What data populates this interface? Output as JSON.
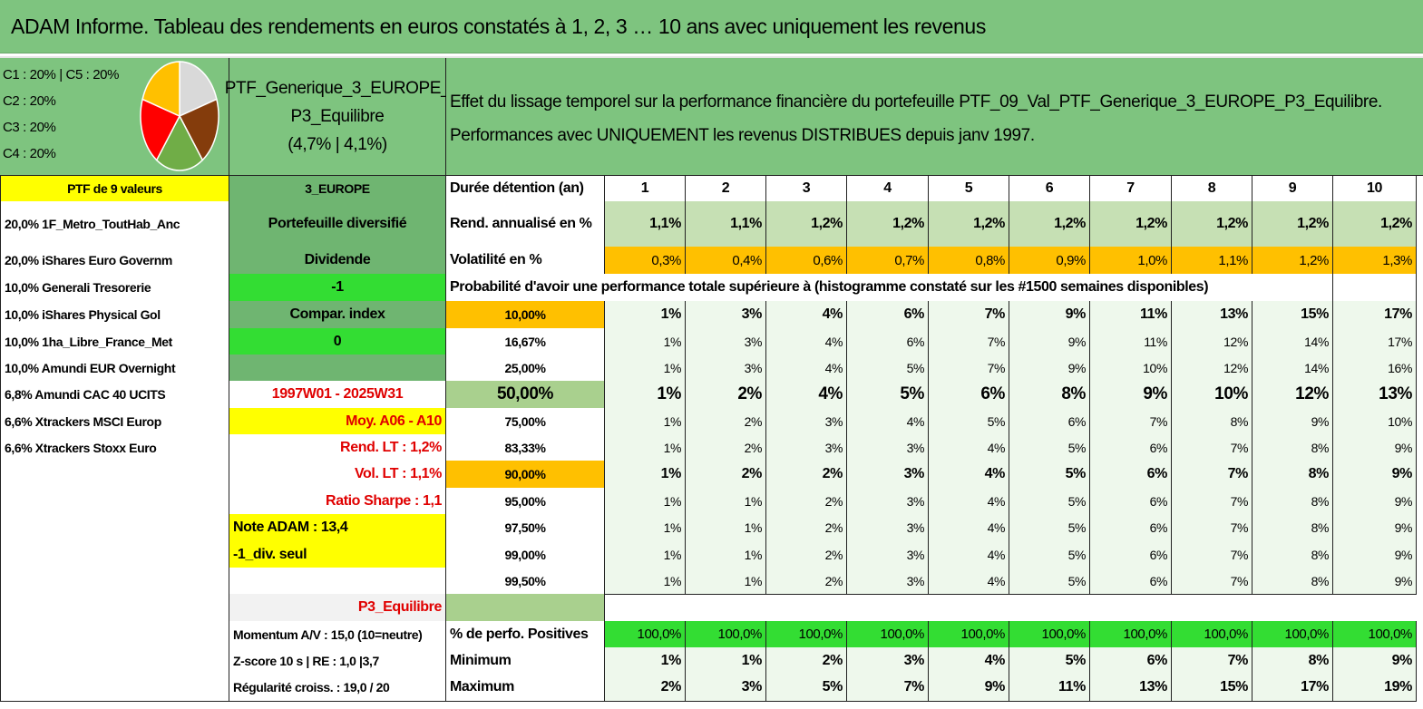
{
  "title": "ADAM Informe. Tableau des rendements en euros constatés à 1, 2, 3 … 10 ans avec uniquement les revenus",
  "allocation": {
    "labels": [
      "C1 : 20% | C5 : 20%",
      "C2 : 20%",
      "C3 : 20%",
      "C4 : 20%"
    ],
    "pie": {
      "values": [
        20,
        20,
        20,
        20,
        20
      ],
      "colors": [
        "#d9d9d9",
        "#843c0c",
        "#70ad47",
        "#ff0000",
        "#ffc000"
      ]
    }
  },
  "portfolio": {
    "name_lines": [
      "PTF_Generique_3_EUROPE_",
      "P3_Equilibre"
    ],
    "stats": "(4,7% | 4,1%)"
  },
  "description": [
    "Effet du lissage temporel sur la performance financière du portefeuille PTF_09_Val_PTF_Generique_3_EUROPE_P3_Equilibre.",
    "Performances avec UNIQUEMENT les revenus DISTRIBUES depuis janv 1997."
  ],
  "table": {
    "rows": [
      [
        "PTF de 9 valeurs",
        "3_EUROPE",
        "Durée détention (an)",
        1,
        2,
        3,
        4,
        5,
        6,
        7,
        8,
        9,
        10
      ],
      [
        "20,0% 1F_Metro_ToutHab_Anc",
        "Portefeuille diversifié",
        "Rend. annualisé en %",
        "1,1%",
        "1,1%",
        "1,2%",
        "1,2%",
        "1,2%",
        "1,2%",
        "1,2%",
        "1,2%",
        "1,2%",
        "1,2%"
      ],
      [
        "20,0% iShares Euro Governm",
        "Dividende",
        "Volatilité en %",
        "0,3%",
        "0,4%",
        "0,6%",
        "0,7%",
        "0,8%",
        "0,9%",
        "1,0%",
        "1,1%",
        "1,2%",
        "1,3%"
      ],
      [
        "10,0% Generali Tresorerie",
        "-1",
        "Probabilité d'avoir une performance totale supérieure à (histogramme constaté sur les #1500 semaines disponibles)",
        null,
        null,
        null,
        null,
        null,
        null,
        null,
        null,
        null,
        null
      ],
      [
        "10,0% iShares Physical Gol",
        "Compar. index",
        "10,00%",
        "1%",
        "3%",
        "4%",
        "6%",
        "7%",
        "9%",
        "11%",
        "13%",
        "15%",
        "17%"
      ],
      [
        "10,0% 1ha_Libre_France_Met",
        "0",
        "16,67%",
        "1%",
        "3%",
        "4%",
        "6%",
        "7%",
        "9%",
        "11%",
        "12%",
        "14%",
        "17%"
      ],
      [
        "10,0% Amundi EUR Overnight",
        null,
        "25,00%",
        "1%",
        "3%",
        "4%",
        "5%",
        "7%",
        "9%",
        "10%",
        "12%",
        "14%",
        "16%"
      ],
      [
        "6,8% Amundi CAC 40 UCITS",
        "1997W01 - 2025W31",
        "50,00%",
        "1%",
        "2%",
        "4%",
        "5%",
        "6%",
        "8%",
        "9%",
        "10%",
        "12%",
        "13%"
      ],
      [
        "6,6% Xtrackers MSCI Europ",
        "Moy. A06 - A10",
        "75,00%",
        "1%",
        "2%",
        "3%",
        "4%",
        "5%",
        "6%",
        "7%",
        "8%",
        "9%",
        "10%"
      ],
      [
        "6,6% Xtrackers Stoxx Euro",
        "Rend. LT : 1,2%",
        "83,33%",
        "1%",
        "2%",
        "3%",
        "3%",
        "4%",
        "5%",
        "6%",
        "7%",
        "8%",
        "9%"
      ],
      [
        null,
        "Vol. LT : 1,1%",
        "90,00%",
        "1%",
        "2%",
        "2%",
        "3%",
        "4%",
        "5%",
        "6%",
        "7%",
        "8%",
        "9%"
      ],
      [
        null,
        "Ratio Sharpe : 1,1",
        "95,00%",
        "1%",
        "1%",
        "2%",
        "3%",
        "4%",
        "5%",
        "6%",
        "7%",
        "8%",
        "9%"
      ],
      [
        null,
        "Note ADAM : 13,4",
        "97,50%",
        "1%",
        "1%",
        "2%",
        "3%",
        "4%",
        "5%",
        "6%",
        "7%",
        "8%",
        "9%"
      ],
      [
        null,
        "-1_div. seul",
        "99,00%",
        "1%",
        "1%",
        "2%",
        "3%",
        "4%",
        "5%",
        "6%",
        "7%",
        "8%",
        "9%"
      ],
      [
        null,
        null,
        "99,50%",
        "1%",
        "1%",
        "2%",
        "3%",
        "4%",
        "5%",
        "6%",
        "7%",
        "8%",
        "9%"
      ],
      [
        null,
        "P3_Equilibre",
        null,
        null,
        null,
        null,
        null,
        null,
        null,
        null,
        null,
        null,
        null
      ],
      [
        null,
        "Momentum A/V : 15,0 (10=neutre)",
        "% de perfo. Positives",
        "100,0%",
        "100,0%",
        "100,0%",
        "100,0%",
        "100,0%",
        "100,0%",
        "100,0%",
        "100,0%",
        "100,0%",
        "100,0%"
      ],
      [
        null,
        "Z-score 10 s | RE : 1,0 |3,7",
        "Minimum",
        "1%",
        "1%",
        "2%",
        "3%",
        "4%",
        "5%",
        "6%",
        "7%",
        "8%",
        "9%"
      ],
      [
        null,
        "Régularité croiss. : 19,0 / 20",
        "Maximum",
        "2%",
        "3%",
        "5%",
        "7%",
        "9%",
        "11%",
        "13%",
        "15%",
        "17%",
        "19%"
      ]
    ]
  }
}
